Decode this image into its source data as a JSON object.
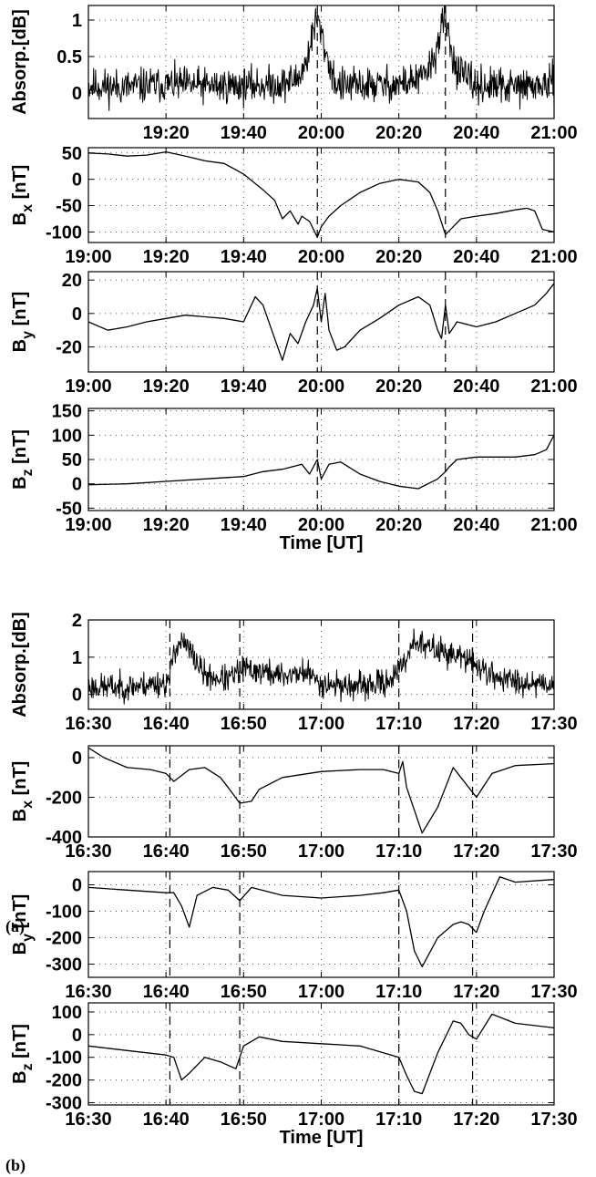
{
  "chart_data": [
    {
      "figure": "(a)",
      "type": "line",
      "ylabel": "Absorp.[dB]",
      "xticks": [
        "19:20",
        "19:40",
        "20:00",
        "20:20",
        "20:40",
        "21:00"
      ],
      "yticks": [
        0,
        0.5,
        1
      ],
      "xlim": [
        0,
        120
      ],
      "ylim": [
        -0.35,
        1.2
      ],
      "markers": [
        59,
        92
      ],
      "noise": {
        "seed": 11,
        "amp": 0.15
      },
      "x": [
        0,
        10,
        20,
        30,
        40,
        50,
        54,
        56,
        58,
        59,
        60,
        62,
        64,
        70,
        80,
        86,
        89,
        91,
        92,
        93,
        95,
        100,
        110,
        120
      ],
      "y": [
        0.1,
        0.08,
        0.12,
        0.1,
        0.1,
        0.12,
        0.2,
        0.4,
        0.85,
        1.05,
        0.8,
        0.4,
        0.1,
        0.1,
        0.12,
        0.2,
        0.45,
        0.9,
        1.05,
        0.7,
        0.3,
        0.1,
        0.08,
        0.12
      ]
    },
    {
      "figure": "(a)",
      "type": "line",
      "ylabel": "B_x [nT]",
      "xticks": [
        "19:00",
        "19:20",
        "19:40",
        "20:00",
        "20:20",
        "20:40",
        "21:00"
      ],
      "yticks": [
        -100,
        -50,
        0,
        50
      ],
      "xlim": [
        0,
        120
      ],
      "ylim": [
        -120,
        60
      ],
      "markers": [
        59,
        92
      ],
      "x": [
        0,
        5,
        10,
        15,
        20,
        25,
        30,
        35,
        40,
        45,
        48,
        50,
        52,
        54,
        55,
        57,
        59,
        60,
        62,
        65,
        70,
        75,
        80,
        85,
        88,
        90,
        92,
        94,
        96,
        100,
        105,
        110,
        113,
        115,
        117,
        120
      ],
      "y": [
        50,
        48,
        44,
        46,
        52,
        44,
        35,
        30,
        10,
        -20,
        -40,
        -75,
        -60,
        -85,
        -70,
        -80,
        -110,
        -90,
        -70,
        -50,
        -25,
        -8,
        0,
        -5,
        -25,
        -60,
        -105,
        -90,
        -75,
        -70,
        -65,
        -58,
        -55,
        -60,
        -95,
        -100
      ]
    },
    {
      "figure": "(a)",
      "type": "line",
      "ylabel": "B_y [nT]",
      "xticks": [
        "19:00",
        "19:20",
        "19:40",
        "20:00",
        "20:20",
        "20:40",
        "21:00"
      ],
      "yticks": [
        -20,
        0,
        20
      ],
      "xlim": [
        0,
        120
      ],
      "ylim": [
        -35,
        25
      ],
      "markers": [
        59,
        92
      ],
      "x": [
        0,
        5,
        10,
        15,
        20,
        25,
        30,
        35,
        40,
        43,
        45,
        48,
        50,
        52,
        54,
        56,
        58,
        59,
        60,
        61,
        62,
        64,
        66,
        70,
        75,
        80,
        85,
        88,
        90,
        91,
        92,
        93,
        95,
        100,
        105,
        110,
        115,
        118,
        120
      ],
      "y": [
        -5,
        -10,
        -8,
        -5,
        -3,
        -1,
        -2,
        -3,
        -5,
        10,
        5,
        -15,
        -28,
        -12,
        -18,
        -5,
        5,
        15,
        -5,
        12,
        -10,
        -22,
        -20,
        -10,
        -3,
        5,
        10,
        5,
        -10,
        -15,
        5,
        -12,
        -5,
        -8,
        -5,
        0,
        5,
        12,
        18
      ]
    },
    {
      "figure": "(a)",
      "type": "line",
      "ylabel": "B_z [nT]",
      "xlabel": "Time [UT]",
      "xticks": [
        "19:00",
        "19:20",
        "19:40",
        "20:00",
        "20:20",
        "20:40",
        "21:00"
      ],
      "yticks": [
        -50,
        0,
        50,
        100,
        150
      ],
      "xlim": [
        0,
        120
      ],
      "ylim": [
        -55,
        155
      ],
      "markers": [
        59,
        92
      ],
      "x": [
        0,
        10,
        20,
        30,
        40,
        45,
        50,
        55,
        57,
        59,
        60,
        62,
        65,
        70,
        75,
        80,
        85,
        90,
        92,
        93,
        95,
        100,
        110,
        115,
        118,
        120
      ],
      "y": [
        -2,
        0,
        5,
        10,
        15,
        25,
        30,
        40,
        20,
        50,
        10,
        40,
        45,
        20,
        5,
        -5,
        -10,
        10,
        25,
        35,
        50,
        55,
        55,
        60,
        70,
        100
      ]
    },
    {
      "figure": "(b)",
      "type": "line",
      "ylabel": "Absorp.[dB]",
      "xticks": [
        "16:30",
        "16:40",
        "16:50",
        "17:00",
        "17:10",
        "17:20",
        "17:30"
      ],
      "yticks": [
        0,
        1,
        2
      ],
      "xlim": [
        0,
        60
      ],
      "ylim": [
        -0.4,
        2
      ],
      "markers": [
        10.5,
        19.5,
        40,
        49.5
      ],
      "noise": {
        "seed": 23,
        "amp": 0.22
      },
      "x": [
        0,
        5,
        9,
        10,
        10.5,
        11,
        12,
        13,
        15,
        18,
        20,
        25,
        28,
        30,
        35,
        38,
        40,
        41,
        42,
        43,
        45,
        48,
        50,
        52,
        55,
        60
      ],
      "y": [
        0.2,
        0.2,
        0.3,
        0.3,
        0.4,
        1.2,
        1.4,
        1.2,
        0.5,
        0.4,
        0.7,
        0.5,
        0.6,
        0.3,
        0.2,
        0.3,
        0.6,
        1.0,
        1.5,
        1.3,
        1.2,
        1.0,
        0.8,
        0.5,
        0.35,
        0.3
      ]
    },
    {
      "figure": "(b)",
      "type": "line",
      "ylabel": "B_x [nT]",
      "xticks": [
        "16:30",
        "16:40",
        "16:50",
        "17:00",
        "17:10",
        "17:20",
        "17:30"
      ],
      "yticks": [
        -400,
        -200,
        0
      ],
      "xlim": [
        0,
        60
      ],
      "ylim": [
        -400,
        60
      ],
      "markers": [
        10.5,
        19.5,
        40,
        49.5
      ],
      "x": [
        0,
        2,
        5,
        8,
        10,
        11,
        13,
        15,
        17,
        18,
        19.5,
        21,
        22,
        25,
        30,
        35,
        38,
        40,
        40.5,
        41,
        43,
        45,
        46,
        47,
        48,
        49,
        50,
        52,
        55,
        60
      ],
      "y": [
        50,
        0,
        -50,
        -60,
        -80,
        -120,
        -60,
        -50,
        -100,
        -150,
        -230,
        -220,
        -160,
        -100,
        -70,
        -60,
        -60,
        -80,
        -20,
        -150,
        -380,
        -250,
        -150,
        -50,
        -100,
        -150,
        -200,
        -80,
        -40,
        -30
      ]
    },
    {
      "figure": "(b)",
      "type": "line",
      "ylabel": "B_y [nT]",
      "xticks": [
        "16:30",
        "16:40",
        "16:50",
        "17:00",
        "17:10",
        "17:20",
        "17:30"
      ],
      "yticks": [
        -300,
        -200,
        -100,
        0
      ],
      "xlim": [
        0,
        60
      ],
      "ylim": [
        -350,
        50
      ],
      "markers": [
        10.5,
        19.5,
        40,
        49.5
      ],
      "x": [
        0,
        5,
        10,
        11,
        12,
        13,
        14,
        16,
        18,
        19.5,
        21,
        25,
        30,
        35,
        38,
        40,
        41,
        42,
        43,
        45,
        47,
        48,
        49,
        50,
        51,
        53,
        55,
        60
      ],
      "y": [
        -10,
        -20,
        -30,
        -30,
        -80,
        -160,
        -40,
        -10,
        -20,
        -60,
        -10,
        -40,
        -50,
        -40,
        -30,
        -20,
        -100,
        -250,
        -310,
        -200,
        -150,
        -140,
        -150,
        -180,
        -100,
        30,
        10,
        20
      ]
    },
    {
      "figure": "(b)",
      "type": "line",
      "ylabel": "B_z [nT]",
      "xlabel": "Time [UT]",
      "xticks": [
        "16:30",
        "16:40",
        "16:50",
        "17:00",
        "17:10",
        "17:20",
        "17:30"
      ],
      "yticks": [
        -300,
        -200,
        -100,
        0,
        100
      ],
      "xlim": [
        0,
        60
      ],
      "ylim": [
        -310,
        140
      ],
      "markers": [
        10.5,
        19.5,
        40,
        49.5
      ],
      "x": [
        0,
        5,
        10,
        11,
        12,
        13,
        15,
        17,
        19,
        20,
        22,
        25,
        30,
        35,
        38,
        40,
        41,
        42,
        43,
        45,
        47,
        48,
        49,
        50,
        52,
        55,
        60
      ],
      "y": [
        -50,
        -70,
        -90,
        -100,
        -200,
        -170,
        -100,
        -120,
        -150,
        -50,
        -10,
        -30,
        -40,
        -50,
        -80,
        -100,
        -180,
        -250,
        -260,
        -80,
        60,
        50,
        0,
        -20,
        90,
        50,
        30
      ]
    }
  ],
  "labels": {
    "panel_a": "(a)",
    "panel_b": "(b)"
  },
  "colors": {
    "line": "#000000",
    "grid": "#555555",
    "marker": "#000000"
  }
}
